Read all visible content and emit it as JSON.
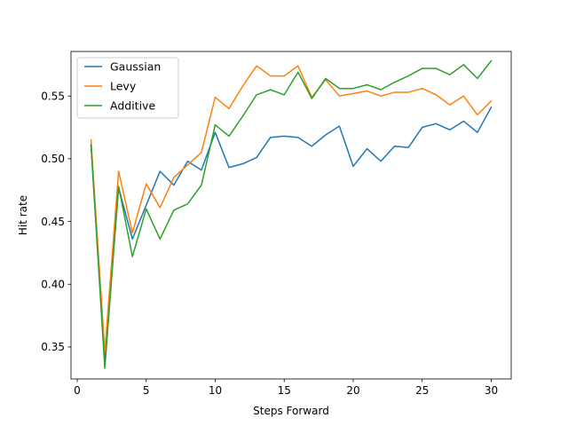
{
  "chart_data": {
    "type": "line",
    "xlabel": "Steps Forward",
    "ylabel": "Hit rate",
    "xlim": [
      -0.45,
      31.45
    ],
    "ylim": [
      0.3245,
      0.5855
    ],
    "xticks": [
      0,
      5,
      10,
      15,
      20,
      25,
      30
    ],
    "yticks": [
      0.35,
      0.4,
      0.45,
      0.5,
      0.55
    ],
    "ytick_labels": [
      "0.35",
      "0.40",
      "0.45",
      "0.50",
      "0.55"
    ],
    "grid": false,
    "legend_position": "top-left",
    "x": [
      1,
      2,
      3,
      4,
      5,
      6,
      7,
      8,
      9,
      10,
      11,
      12,
      13,
      14,
      15,
      16,
      17,
      18,
      19,
      20,
      21,
      22,
      23,
      24,
      25,
      26,
      27,
      28,
      29,
      30
    ],
    "series": [
      {
        "name": "Gaussian",
        "color": "#1f77b4",
        "values": [
          0.511,
          0.337,
          0.477,
          0.436,
          0.463,
          0.49,
          0.479,
          0.498,
          0.491,
          0.521,
          0.493,
          0.496,
          0.501,
          0.517,
          0.518,
          0.517,
          0.51,
          0.519,
          0.526,
          0.494,
          0.508,
          0.498,
          0.51,
          0.509,
          0.525,
          0.528,
          0.523,
          0.53,
          0.521,
          0.541
        ]
      },
      {
        "name": "Levy",
        "color": "#ff7f0e",
        "values": [
          0.515,
          0.346,
          0.49,
          0.441,
          0.48,
          0.461,
          0.485,
          0.495,
          0.505,
          0.549,
          0.54,
          0.558,
          0.574,
          0.566,
          0.566,
          0.574,
          0.549,
          0.563,
          0.55,
          0.552,
          0.554,
          0.55,
          0.553,
          0.553,
          0.556,
          0.551,
          0.543,
          0.55,
          0.535,
          0.546
        ]
      },
      {
        "name": "Additive",
        "color": "#2ca02c",
        "values": [
          0.511,
          0.333,
          0.478,
          0.422,
          0.46,
          0.436,
          0.459,
          0.464,
          0.479,
          0.527,
          0.518,
          0.534,
          0.551,
          0.555,
          0.551,
          0.569,
          0.548,
          0.564,
          0.556,
          0.556,
          0.559,
          0.555,
          0.561,
          0.566,
          0.572,
          0.572,
          0.567,
          0.575,
          0.564,
          0.578
        ]
      }
    ]
  }
}
